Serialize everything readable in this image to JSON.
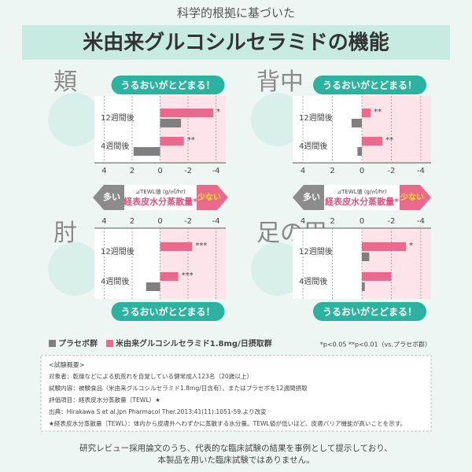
{
  "header": {
    "kicker": "科学的根拠に基づいた",
    "title": "米由来グルコシルセラミドの機能"
  },
  "scale_band": {
    "high": "多い",
    "unit": "⊿TEWL値 (g/㎡/hr)",
    "label": "経表皮水分蒸散量*",
    "low": "少ない"
  },
  "chart_data": [
    {
      "type": "bar",
      "title": "頬",
      "callout": "うるおいがとどまる！",
      "categories": [
        "12週間後",
        "4週間後"
      ],
      "series": [
        {
          "name": "プラセボ群",
          "color": "#7f7f7f",
          "values": [
            -1.5,
            1.9
          ]
        },
        {
          "name": "米由来グルコシルセラミド1.8mg/日摂取群",
          "color": "#ea6a8d",
          "values": [
            -3.8,
            -1.7
          ],
          "significance": [
            "*",
            "**"
          ]
        }
      ],
      "xlim": [
        4.7,
        -4.7
      ],
      "xticks": [
        4,
        2,
        0,
        -2,
        -4
      ]
    },
    {
      "type": "bar",
      "title": "背中",
      "callout": "うるおいがとどまる！",
      "categories": [
        "12週間後",
        "4週間後"
      ],
      "series": [
        {
          "name": "プラセボ群",
          "color": "#7f7f7f",
          "values": [
            0.7,
            0.3
          ]
        },
        {
          "name": "米由来グルコシルセラミド1.8mg/日摂取群",
          "color": "#ea6a8d",
          "values": [
            -0.6,
            -1.4
          ],
          "significance": [
            "**",
            "**"
          ]
        }
      ],
      "xlim": [
        4.7,
        -4.7
      ],
      "xticks": [
        4,
        2,
        0,
        -2,
        -4
      ]
    },
    {
      "type": "bar",
      "title": "肘",
      "callout": "うるおいがとどまる！",
      "categories": [
        "12週間後",
        "4週間後"
      ],
      "series": [
        {
          "name": "プラセボ群",
          "color": "#7f7f7f",
          "values": [
            0,
            1.0
          ]
        },
        {
          "name": "米由来グルコシルセラミド1.8mg/日摂取群",
          "color": "#ea6a8d",
          "values": [
            -2.3,
            -1.3
          ],
          "significance": [
            "***",
            "***"
          ]
        }
      ],
      "xlim": [
        4.7,
        -4.7
      ],
      "xticks": [
        4,
        2,
        0,
        -2,
        -4
      ]
    },
    {
      "type": "bar",
      "title": "足の甲",
      "callout": "うるおいがとどまる！",
      "categories": [
        "12週間後",
        "4週間後"
      ],
      "series": [
        {
          "name": "プラセボ群",
          "color": "#7f7f7f",
          "values": [
            -0.5,
            -0.2
          ]
        },
        {
          "name": "米由来グルコシルセラミド1.8mg/日摂取群",
          "color": "#ea6a8d",
          "values": [
            -3.0,
            -2.0
          ],
          "significance": [
            "*",
            null
          ]
        }
      ],
      "xlim": [
        4.7,
        -4.7
      ],
      "xticks": [
        4,
        2,
        0,
        -2,
        -4
      ]
    }
  ],
  "note": "*p<0.05 **p<0.01（vs.プラセボ群）",
  "summary": {
    "heading": "<試験概要>",
    "lines": [
      "対象者：乾燥などによる肌荒れを自覚している健常成人123名（20歳以上）",
      "試験内容：被験食品（米由来グルコシルセラミド1.8mg/日含有）、またはプラセボを12週間摂取",
      "評価項目：経表皮水分蒸散量（TEWL）★",
      "出典：Hirakawa S et al.Jpn Pharmacol Ther.2013;41(11):1051-59.より改変",
      "★経表皮水分蒸散量（TEWL）：体内から皮膚外へわずかに蒸散する水分量。TEWL値が低いほど、皮膚バリア機能が高いことを示す。"
    ]
  },
  "footer": [
    "研究レビュー採用論文のうち、代表的な臨床試験の結果を事例として提示しており、",
    "本製品を用いた臨床試験ではありません。"
  ]
}
